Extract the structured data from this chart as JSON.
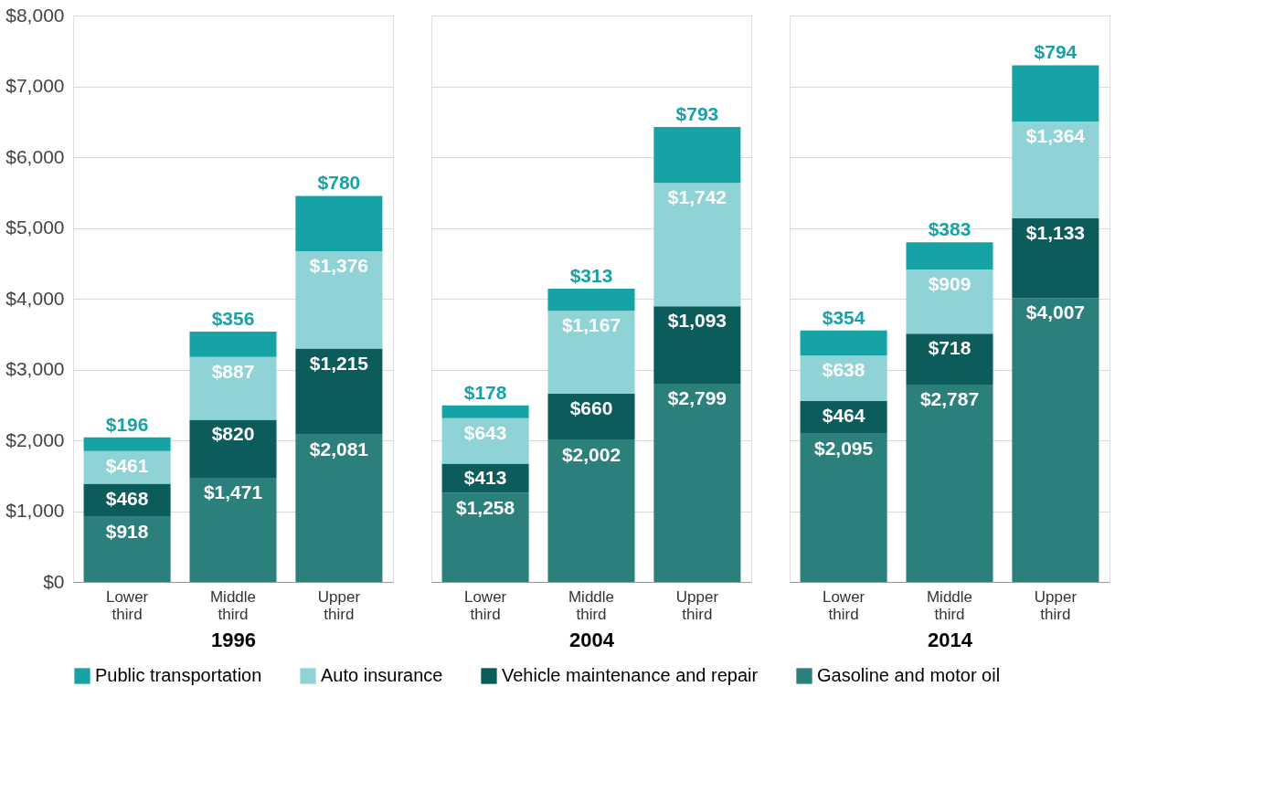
{
  "chart_data": [
    {
      "type": "bar",
      "stacked": true,
      "xlabel": "1996",
      "categories": [
        "Lower third",
        "Middle third",
        "Upper third"
      ],
      "legend": "bottom",
      "grid": "y",
      "ylim": [
        0,
        8000
      ],
      "yticks": [
        {
          "value": 0,
          "label": "$0"
        },
        {
          "value": 1000,
          "label": "$1,000"
        },
        {
          "value": 2000,
          "label": "$2,000"
        },
        {
          "value": 3000,
          "label": "$3,000"
        },
        {
          "value": 4000,
          "label": "$4,000"
        },
        {
          "value": 5000,
          "label": "$5,000"
        },
        {
          "value": 6000,
          "label": "$6,000"
        },
        {
          "value": 7000,
          "label": "$7,000"
        },
        {
          "value": 8000,
          "label": "$8,000"
        }
      ],
      "series": [
        {
          "name": "Gasoline and motor oil",
          "color": "#2b807c",
          "values": [
            918,
            1471,
            2081
          ],
          "value_labels": [
            "$918",
            "$1,471",
            "$2,081"
          ]
        },
        {
          "name": "Vehicle maintenance and repair",
          "color": "#0b5c5a",
          "values": [
            468,
            820,
            1215
          ],
          "value_labels": [
            "$468",
            "$820",
            "$1,215"
          ]
        },
        {
          "name": "Auto insurance",
          "color": "#8fd3d6",
          "values": [
            461,
            887,
            1376
          ],
          "value_labels": [
            "$461",
            "$887",
            "$1,376"
          ]
        },
        {
          "name": "Public transportation",
          "color": "#17a3a6",
          "values": [
            196,
            356,
            780
          ],
          "value_labels": [
            "$196",
            "$356",
            "$780"
          ]
        }
      ]
    },
    {
      "type": "bar",
      "stacked": true,
      "xlabel": "2004",
      "categories": [
        "Lower third",
        "Middle third",
        "Upper third"
      ],
      "legend": false,
      "grid": "y",
      "tick_labels": "x",
      "ylim": [
        0,
        8000
      ],
      "series": [
        {
          "name": "Gasoline and motor oil",
          "color": "#2b807c",
          "values": [
            1258,
            2002,
            2799
          ],
          "value_labels": [
            "$1,258",
            "$2,002",
            "$2,799"
          ]
        },
        {
          "name": "Vehicle maintenance and repair",
          "color": "#0b5c5a",
          "values": [
            413,
            660,
            1093
          ],
          "value_labels": [
            "$413",
            "$660",
            "$1,093"
          ]
        },
        {
          "name": "Auto insurance",
          "color": "#8fd3d6",
          "values": [
            643,
            1167,
            1742
          ],
          "value_labels": [
            "$643",
            "$1,167",
            "$1,742"
          ]
        },
        {
          "name": "Public transportation",
          "color": "#17a3a6",
          "values": [
            178,
            313,
            793
          ],
          "value_labels": [
            "$178",
            "$313",
            "$793"
          ]
        }
      ]
    },
    {
      "type": "bar",
      "stacked": true,
      "xlabel": "2014",
      "categories": [
        "Lower third",
        "Middle third",
        "Upper third"
      ],
      "legend": false,
      "grid": "y",
      "tick_labels": "x",
      "ylim": [
        0,
        8000
      ],
      "series": [
        {
          "name": "Gasoline and motor oil",
          "color": "#2b807c",
          "values": [
            2095,
            2787,
            4007
          ],
          "value_labels": [
            "$2,095",
            "$2,787",
            "$4,007"
          ]
        },
        {
          "name": "Vehicle maintenance and repair",
          "color": "#0b5c5a",
          "values": [
            464,
            718,
            1133
          ],
          "value_labels": [
            "$464",
            "$718",
            "$1,133"
          ]
        },
        {
          "name": "Auto insurance",
          "color": "#8fd3d6",
          "values": [
            638,
            909,
            1364
          ],
          "value_labels": [
            "$638",
            "$909",
            "$1,364"
          ]
        },
        {
          "name": "Public transportation",
          "color": "#17a3a6",
          "values": [
            354,
            383,
            794
          ],
          "value_labels": [
            "$354",
            "$383",
            "$794"
          ]
        }
      ]
    }
  ]
}
